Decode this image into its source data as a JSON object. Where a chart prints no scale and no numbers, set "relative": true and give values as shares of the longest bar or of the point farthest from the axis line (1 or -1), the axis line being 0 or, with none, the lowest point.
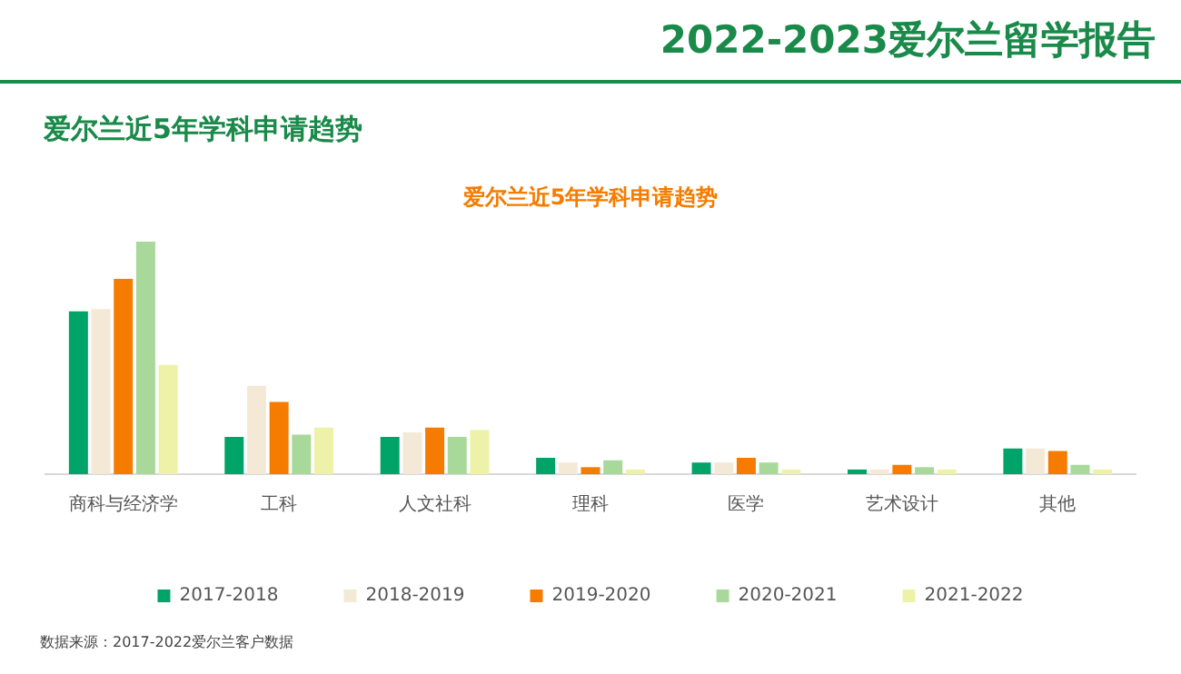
{
  "chart_data": {
    "type": "bar",
    "title": "爱尔兰近5年学科申请趋势",
    "subtitle": "爱尔兰近5年学科申请趋势",
    "annotations": [
      "2022-2023爱尔兰留学报告",
      "数据来源：2017-2022爱尔兰客户数据"
    ],
    "categories": [
      "商科与经济学",
      "工科",
      "人文社科",
      "理科",
      "医学",
      "艺术设计",
      "其他"
    ],
    "relative": true,
    "legend": "bottom",
    "series": [
      {
        "name": "2017-2018",
        "color": "#00a368",
        "values": [
          0.7,
          0.16,
          0.16,
          0.07,
          0.05,
          0.02,
          0.11
        ]
      },
      {
        "name": "2018-2019",
        "color": "#f3e9d6",
        "values": [
          0.71,
          0.38,
          0.18,
          0.05,
          0.05,
          0.02,
          0.11
        ]
      },
      {
        "name": "2019-2020",
        "color": "#f57c00",
        "values": [
          0.84,
          0.31,
          0.2,
          0.03,
          0.07,
          0.04,
          0.1
        ]
      },
      {
        "name": "2020-2021",
        "color": "#a8d89a",
        "values": [
          1.0,
          0.17,
          0.16,
          0.06,
          0.05,
          0.03,
          0.04
        ]
      },
      {
        "name": "2021-2022",
        "color": "#eef2a8",
        "values": [
          0.47,
          0.2,
          0.19,
          0.02,
          0.02,
          0.02,
          0.02
        ]
      }
    ]
  }
}
